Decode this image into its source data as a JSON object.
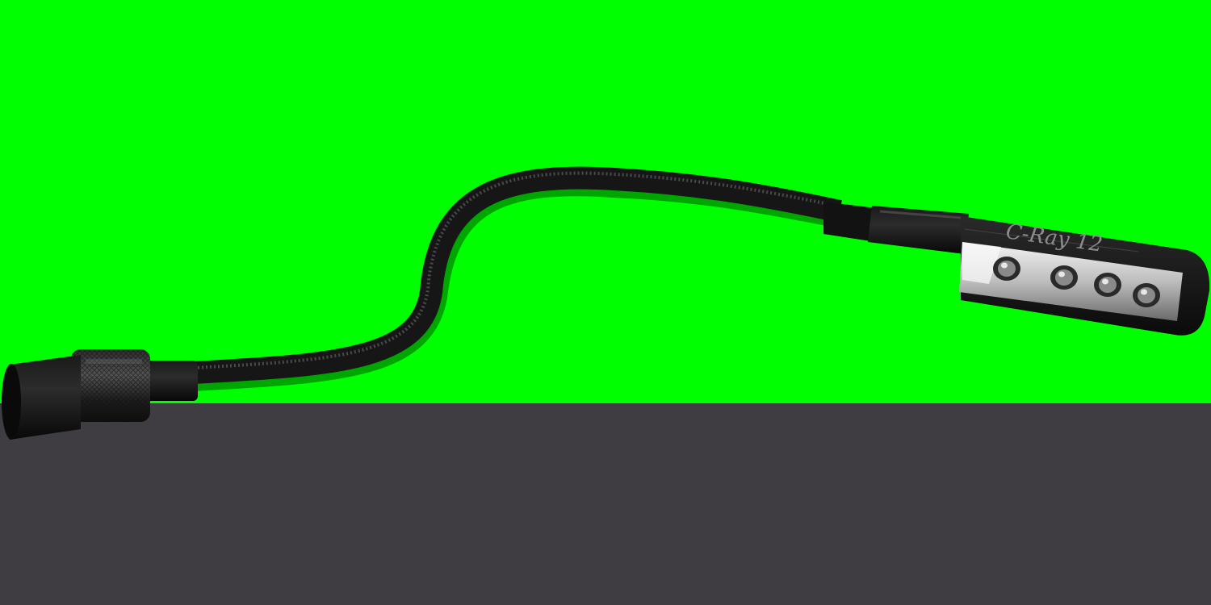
{
  "image": {
    "subject": "gooseneck-led-lamp",
    "colors": {
      "backdrop_green": "#00ff00",
      "backdrop_dark": "#3f3d41",
      "lamp_black": "#141414",
      "lamp_highlight": "#3a3a3a",
      "reflector_silver": "#d8d8d8",
      "led_body": "#8a8a8a"
    },
    "head_label": "C-Ray 12",
    "led_count": 4
  }
}
